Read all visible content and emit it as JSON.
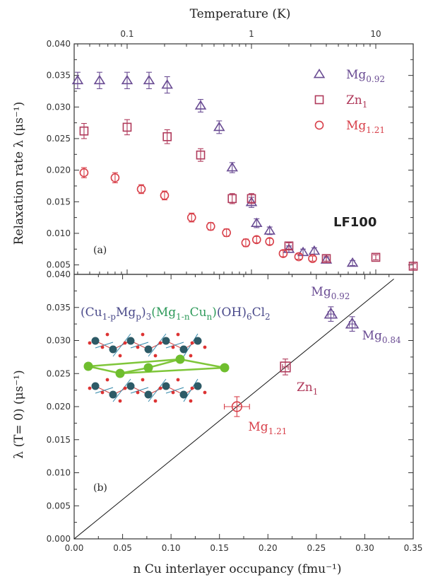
{
  "colors": {
    "mg092": "#6a4c93",
    "zn1": "#b03a5b",
    "mg121": "#d8404a",
    "formula_dark": "#4a4a8a",
    "formula_green": "#2e9a5a",
    "frame": "#333333"
  },
  "chart_data": [
    {
      "type": "scatter",
      "panel_label": "(a)",
      "annotation": "LF100",
      "top_axis": {
        "label": "Temperature (K)",
        "scale": "log",
        "range": [
          0.0375,
          20
        ],
        "ticks": [
          "0.1",
          "1",
          "10"
        ]
      },
      "x_axis": {
        "scale": "log",
        "range": [
          0.0375,
          20
        ]
      },
      "y_axis": {
        "label": "Relaxation rate λ (μs⁻¹)",
        "range": [
          0.0035,
          0.04
        ],
        "ticks": [
          "0.005",
          "0.010",
          "0.015",
          "0.020",
          "0.025",
          "0.030",
          "0.035",
          "0.040"
        ]
      },
      "legend": {
        "position": "top-right",
        "entries": [
          {
            "base": "Mg",
            "sub": "0.92",
            "marker": "triangle",
            "color": "mg092"
          },
          {
            "base": "Zn",
            "sub": "1",
            "marker": "square",
            "color": "zn1"
          },
          {
            "base": "Mg",
            "sub": "1.21",
            "marker": "circle",
            "color": "mg121"
          }
        ]
      },
      "series": [
        {
          "name": "Mg0.92",
          "marker": "triangle",
          "color": "mg092",
          "x": [
            0.04,
            0.06,
            0.1,
            0.15,
            0.21,
            0.39,
            0.55,
            0.7,
            1.0,
            1.1,
            1.4,
            2.0,
            2.6,
            3.2,
            4.0,
            6.5
          ],
          "y": [
            0.0342,
            0.0342,
            0.0342,
            0.0342,
            0.0335,
            0.0302,
            0.0268,
            0.0204,
            0.0149,
            0.0116,
            0.0104,
            0.0075,
            0.007,
            0.0072,
            0.0058,
            0.0053
          ],
          "err": [
            0.0013,
            0.0013,
            0.0013,
            0.0013,
            0.0013,
            0.001,
            0.001,
            0.0008,
            0.0008,
            0.0007,
            0.0006,
            0.0005,
            0.0005,
            0.0005,
            0.0004,
            0.0004
          ]
        },
        {
          "name": "Zn1",
          "marker": "square",
          "color": "zn1",
          "x": [
            0.045,
            0.1,
            0.21,
            0.39,
            0.7,
            1.0,
            2.0,
            4.0,
            10.0,
            20.0
          ],
          "y": [
            0.0262,
            0.0268,
            0.0253,
            0.0224,
            0.0155,
            0.0155,
            0.008,
            0.006,
            0.0062,
            0.0048
          ],
          "err": [
            0.0012,
            0.0012,
            0.0011,
            0.001,
            0.0008,
            0.0008,
            0.0005,
            0.0004,
            0.0004,
            0.0004
          ]
        },
        {
          "name": "Mg1.21",
          "marker": "circle",
          "color": "mg121",
          "x": [
            0.045,
            0.08,
            0.13,
            0.2,
            0.33,
            0.47,
            0.63,
            0.9,
            1.1,
            1.4,
            1.8,
            2.4,
            3.1
          ],
          "y": [
            0.0196,
            0.0188,
            0.017,
            0.016,
            0.0125,
            0.0111,
            0.0101,
            0.0085,
            0.009,
            0.0087,
            0.0068,
            0.0063,
            0.006
          ],
          "err": [
            0.0008,
            0.0008,
            0.0007,
            0.0007,
            0.0007,
            0.0006,
            0.0006,
            0.0006,
            0.0005,
            0.0005,
            0.0005,
            0.0004,
            0.0004
          ]
        }
      ]
    },
    {
      "type": "scatter",
      "panel_label": "(b)",
      "x_axis": {
        "label": "n Cu interlayer occupancy  (fmu⁻¹)",
        "range": [
          0,
          0.35
        ],
        "ticks": [
          "0.00",
          "0.05",
          "0.10",
          "0.15",
          "0.20",
          "0.25",
          "0.30",
          "0.35"
        ]
      },
      "y_axis": {
        "label": "λ (T= 0) (μs⁻¹)",
        "range": [
          0,
          0.04
        ],
        "ticks": [
          "0.000",
          "0.005",
          "0.010",
          "0.015",
          "0.020",
          "0.025",
          "0.030",
          "0.035",
          "0.040"
        ]
      },
      "formula": {
        "parts": [
          {
            "t": "(Cu",
            "color": "formula_dark"
          },
          {
            "t": "1-p",
            "color": "formula_dark",
            "sub": true
          },
          {
            "t": "Mg",
            "color": "formula_dark"
          },
          {
            "t": "p",
            "color": "formula_dark",
            "sub": true
          },
          {
            "t": ")",
            "color": "formula_dark"
          },
          {
            "t": "3",
            "color": "formula_dark",
            "sub": true
          },
          {
            "t": "(Mg",
            "color": "formula_green"
          },
          {
            "t": "1-n",
            "color": "formula_green",
            "sub": true
          },
          {
            "t": "Cu",
            "color": "formula_green"
          },
          {
            "t": "n",
            "color": "formula_green",
            "sub": true
          },
          {
            "t": ")",
            "color": "formula_green"
          },
          {
            "t": "(OH)",
            "color": "formula_dark"
          },
          {
            "t": "6",
            "color": "formula_dark",
            "sub": true
          },
          {
            "t": "Cl",
            "color": "formula_dark"
          },
          {
            "t": "2",
            "color": "formula_dark",
            "sub": true
          }
        ]
      },
      "fit_line": {
        "x": [
          0,
          0.33
        ],
        "y": [
          0,
          0.0393
        ]
      },
      "points": [
        {
          "x": 0.265,
          "y": 0.034,
          "xerr": 0.003,
          "yerr": 0.0011,
          "marker": "triangle",
          "color": "mg092",
          "base": "Mg",
          "sub": "0.92"
        },
        {
          "x": 0.287,
          "y": 0.0325,
          "xerr": 0.003,
          "yerr": 0.0011,
          "marker": "triangle",
          "color": "mg092",
          "base": "Mg",
          "sub": "0.84"
        },
        {
          "x": 0.218,
          "y": 0.026,
          "xerr": 0.003,
          "yerr": 0.0012,
          "marker": "square",
          "color": "zn1",
          "base": "Zn",
          "sub": "1"
        },
        {
          "x": 0.168,
          "y": 0.02,
          "xerr": 0.013,
          "yerr": 0.0015,
          "marker": "circle",
          "color": "mg121",
          "base": "Mg",
          "sub": "1.21"
        }
      ]
    }
  ]
}
